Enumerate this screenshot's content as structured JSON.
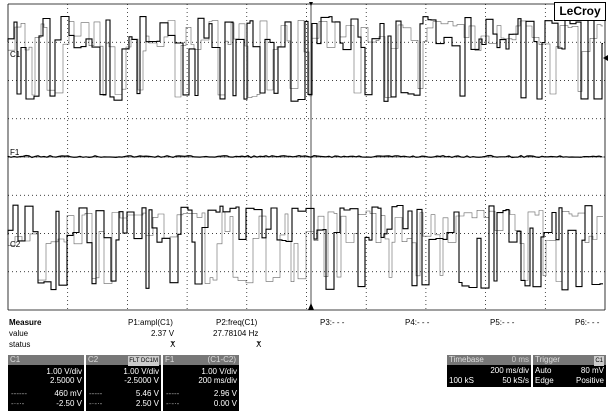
{
  "brand": "LeCroy",
  "traces": {
    "c1_label": "C1",
    "f1_label": "F1",
    "c2_label": "C2"
  },
  "measure": {
    "title": "Measure",
    "row_labels": [
      "value",
      "status"
    ],
    "params": [
      {
        "name": "P1:ampl(C1)",
        "value": "2.37 V",
        "status": "ⵅ"
      },
      {
        "name": "P2:freq(C1)",
        "value": "27.78104 Hz",
        "status": "ⵅ"
      },
      {
        "name": "P3:- - -",
        "value": "",
        "status": ""
      },
      {
        "name": "P4:- - -",
        "value": "",
        "status": ""
      },
      {
        "name": "P5:- - -",
        "value": "",
        "status": ""
      },
      {
        "name": "P6:- - -",
        "value": "",
        "status": ""
      }
    ]
  },
  "channels": [
    {
      "name": "C1",
      "tags": "",
      "vdiv": "1.00 V/div",
      "offset": "2.5000 V",
      "cursor1": "460 mV",
      "cursor2": "-2.50 V"
    },
    {
      "name": "C2",
      "tags": "FLT  DC1M",
      "vdiv": "1.00 V/div",
      "offset": "-2.5000 V",
      "cursor1": "5.46 V",
      "cursor2": "2.50 V"
    },
    {
      "name": "F1",
      "expr": "(C1-C2)",
      "vdiv": "1.00 V/div",
      "offset": "200 ms/div",
      "cursor1": "2.96 V",
      "cursor2": "0.00 V"
    }
  ],
  "timebase": {
    "title": "Timebase",
    "tag": "0 ms",
    "tdiv": "200 ms/div",
    "samples": "100 kS",
    "rate": "50 kS/s"
  },
  "trigger": {
    "title": "Trigger",
    "tag": "C1",
    "mode": "Auto",
    "level": "80 mV",
    "type": "Edge",
    "slope": "Positive"
  }
}
